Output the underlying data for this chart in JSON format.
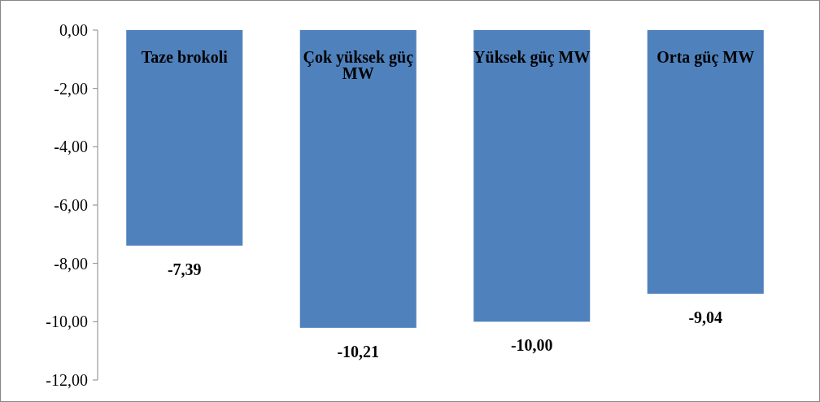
{
  "chart_data": {
    "type": "bar",
    "categories": [
      "Taze brokoli",
      "Çok yüksek güç MW",
      "Yüksek güç MW",
      "Orta güç MW"
    ],
    "values": [
      -7.39,
      -10.21,
      -10.0,
      -9.04
    ],
    "color": "#4f81bd",
    "value_labels": [
      "-7,39",
      "-10,21",
      "-10,00",
      "-9,04"
    ],
    "ylim": [
      -12,
      0
    ],
    "yticks": [
      {
        "value": 0,
        "label": "0,00"
      },
      {
        "value": -2,
        "label": "-2,00"
      },
      {
        "value": -4,
        "label": "-4,00"
      },
      {
        "value": -6,
        "label": "-6,00"
      },
      {
        "value": -8,
        "label": "-8,00"
      },
      {
        "value": -10,
        "label": "-10,00"
      },
      {
        "value": -12,
        "label": "-12,00"
      }
    ],
    "grid": false
  }
}
